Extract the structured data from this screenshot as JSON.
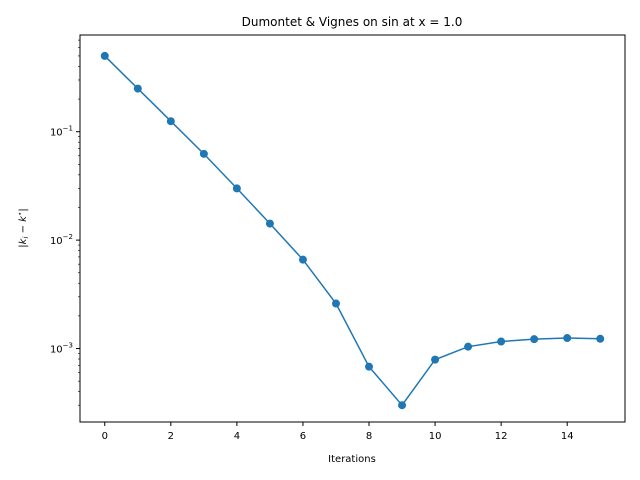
{
  "chart_data": {
    "type": "line",
    "title": "Dumontet & Vignes on sin at x = 1.0",
    "xlabel": "Iterations",
    "ylabel": "|k_i − k*|",
    "ylabel_parts": {
      "bar_left": "|",
      "k": "k",
      "i": "i",
      "minus": " − ",
      "kstar": "k",
      "star": "⋆",
      "bar_right": "|"
    },
    "yscale": "log",
    "xlim": [
      -0.75,
      15.75
    ],
    "ylim": [
      0.00021,
      0.78
    ],
    "x_ticks": [
      0,
      2,
      4,
      6,
      8,
      10,
      12,
      14
    ],
    "x_tick_labels": [
      "0",
      "2",
      "4",
      "6",
      "8",
      "10",
      "12",
      "14"
    ],
    "y_ticks": [
      0.001,
      0.01,
      0.1
    ],
    "y_tick_labels": [
      {
        "base": "10",
        "exp": "−3"
      },
      {
        "base": "10",
        "exp": "−2"
      },
      {
        "base": "10",
        "exp": "−1"
      }
    ],
    "series": [
      {
        "color": "#1f77b4",
        "marker": "circle",
        "x": [
          0,
          1,
          2,
          3,
          4,
          5,
          6,
          7,
          8,
          9,
          10,
          11,
          12,
          13,
          14,
          15
        ],
        "y": [
          0.5,
          0.25,
          0.125,
          0.0625,
          0.03,
          0.0142,
          0.0066,
          0.0026,
          0.00068,
          0.0003,
          0.00079,
          0.00104,
          0.00116,
          0.00122,
          0.00125,
          0.00123
        ]
      }
    ],
    "grid": false
  }
}
